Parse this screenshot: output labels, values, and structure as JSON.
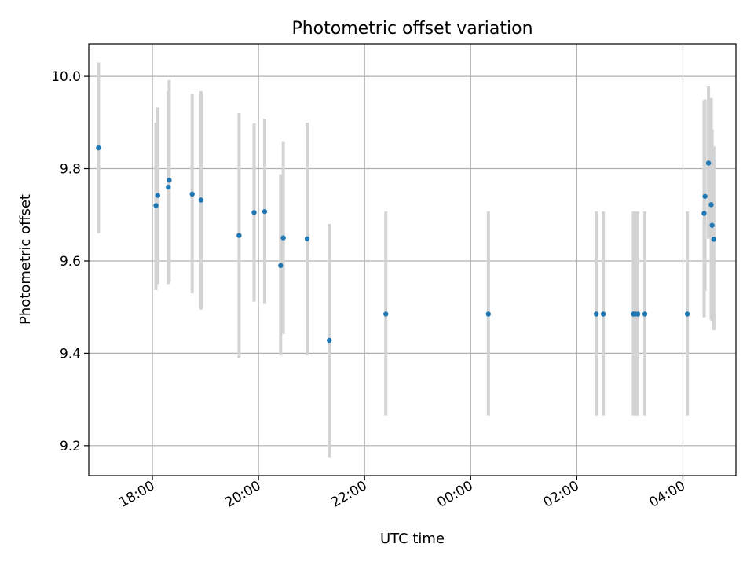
{
  "chart_data": {
    "type": "scatter",
    "title": "Photometric offset variation",
    "xlabel": "UTC time",
    "ylabel": "Photometric offset",
    "x_ticks": [
      "18:00",
      "20:00",
      "22:00",
      "00:00",
      "02:00",
      "04:00"
    ],
    "y_ticks": [
      "9.2",
      "9.4",
      "9.6",
      "9.8",
      "10.0"
    ],
    "xlim": [
      "16:48",
      "05:00"
    ],
    "ylim": [
      9.135,
      10.07
    ],
    "grid": true,
    "marker_color": "#1f77b4",
    "errorbar_color": "#d3d3d3",
    "points": [
      {
        "t": "16:59",
        "y": 9.845,
        "lo": 9.66,
        "hi": 10.03
      },
      {
        "t": "18:04",
        "y": 9.72,
        "lo": 9.537,
        "hi": 9.9
      },
      {
        "t": "18:06",
        "y": 9.742,
        "lo": 9.55,
        "hi": 9.933
      },
      {
        "t": "18:18",
        "y": 9.76,
        "lo": 9.55,
        "hi": 9.968
      },
      {
        "t": "18:19",
        "y": 9.775,
        "lo": 9.555,
        "hi": 9.992
      },
      {
        "t": "18:45",
        "y": 9.745,
        "lo": 9.53,
        "hi": 9.962
      },
      {
        "t": "18:55",
        "y": 9.732,
        "lo": 9.495,
        "hi": 9.968
      },
      {
        "t": "19:38",
        "y": 9.655,
        "lo": 9.39,
        "hi": 9.92
      },
      {
        "t": "19:55",
        "y": 9.705,
        "lo": 9.512,
        "hi": 9.898
      },
      {
        "t": "20:07",
        "y": 9.707,
        "lo": 9.507,
        "hi": 9.908
      },
      {
        "t": "20:25",
        "y": 9.59,
        "lo": 9.395,
        "hi": 9.788
      },
      {
        "t": "20:28",
        "y": 9.65,
        "lo": 9.442,
        "hi": 9.858
      },
      {
        "t": "20:55",
        "y": 9.648,
        "lo": 9.395,
        "hi": 9.9
      },
      {
        "t": "21:20",
        "y": 9.428,
        "lo": 9.175,
        "hi": 9.68
      },
      {
        "t": "22:24",
        "y": 9.485,
        "lo": 9.265,
        "hi": 9.707
      },
      {
        "t": "00:20",
        "y": 9.485,
        "lo": 9.265,
        "hi": 9.707
      },
      {
        "t": "02:22",
        "y": 9.485,
        "lo": 9.265,
        "hi": 9.707
      },
      {
        "t": "02:30",
        "y": 9.485,
        "lo": 9.265,
        "hi": 9.707
      },
      {
        "t": "03:04",
        "y": 9.485,
        "lo": 9.265,
        "hi": 9.707
      },
      {
        "t": "03:06",
        "y": 9.485,
        "lo": 9.265,
        "hi": 9.707
      },
      {
        "t": "03:09",
        "y": 9.485,
        "lo": 9.265,
        "hi": 9.707
      },
      {
        "t": "03:17",
        "y": 9.485,
        "lo": 9.265,
        "hi": 9.707
      },
      {
        "t": "04:05",
        "y": 9.485,
        "lo": 9.265,
        "hi": 9.707
      },
      {
        "t": "04:24",
        "y": 9.703,
        "lo": 9.478,
        "hi": 9.948
      },
      {
        "t": "04:25",
        "y": 9.74,
        "lo": 9.535,
        "hi": 9.95
      },
      {
        "t": "04:29",
        "y": 9.812,
        "lo": 9.648,
        "hi": 9.978
      },
      {
        "t": "04:32",
        "y": 9.722,
        "lo": 9.473,
        "hi": 9.953
      },
      {
        "t": "04:33",
        "y": 9.677,
        "lo": 9.47,
        "hi": 9.885
      },
      {
        "t": "04:35",
        "y": 9.647,
        "lo": 9.45,
        "hi": 9.848
      }
    ]
  }
}
